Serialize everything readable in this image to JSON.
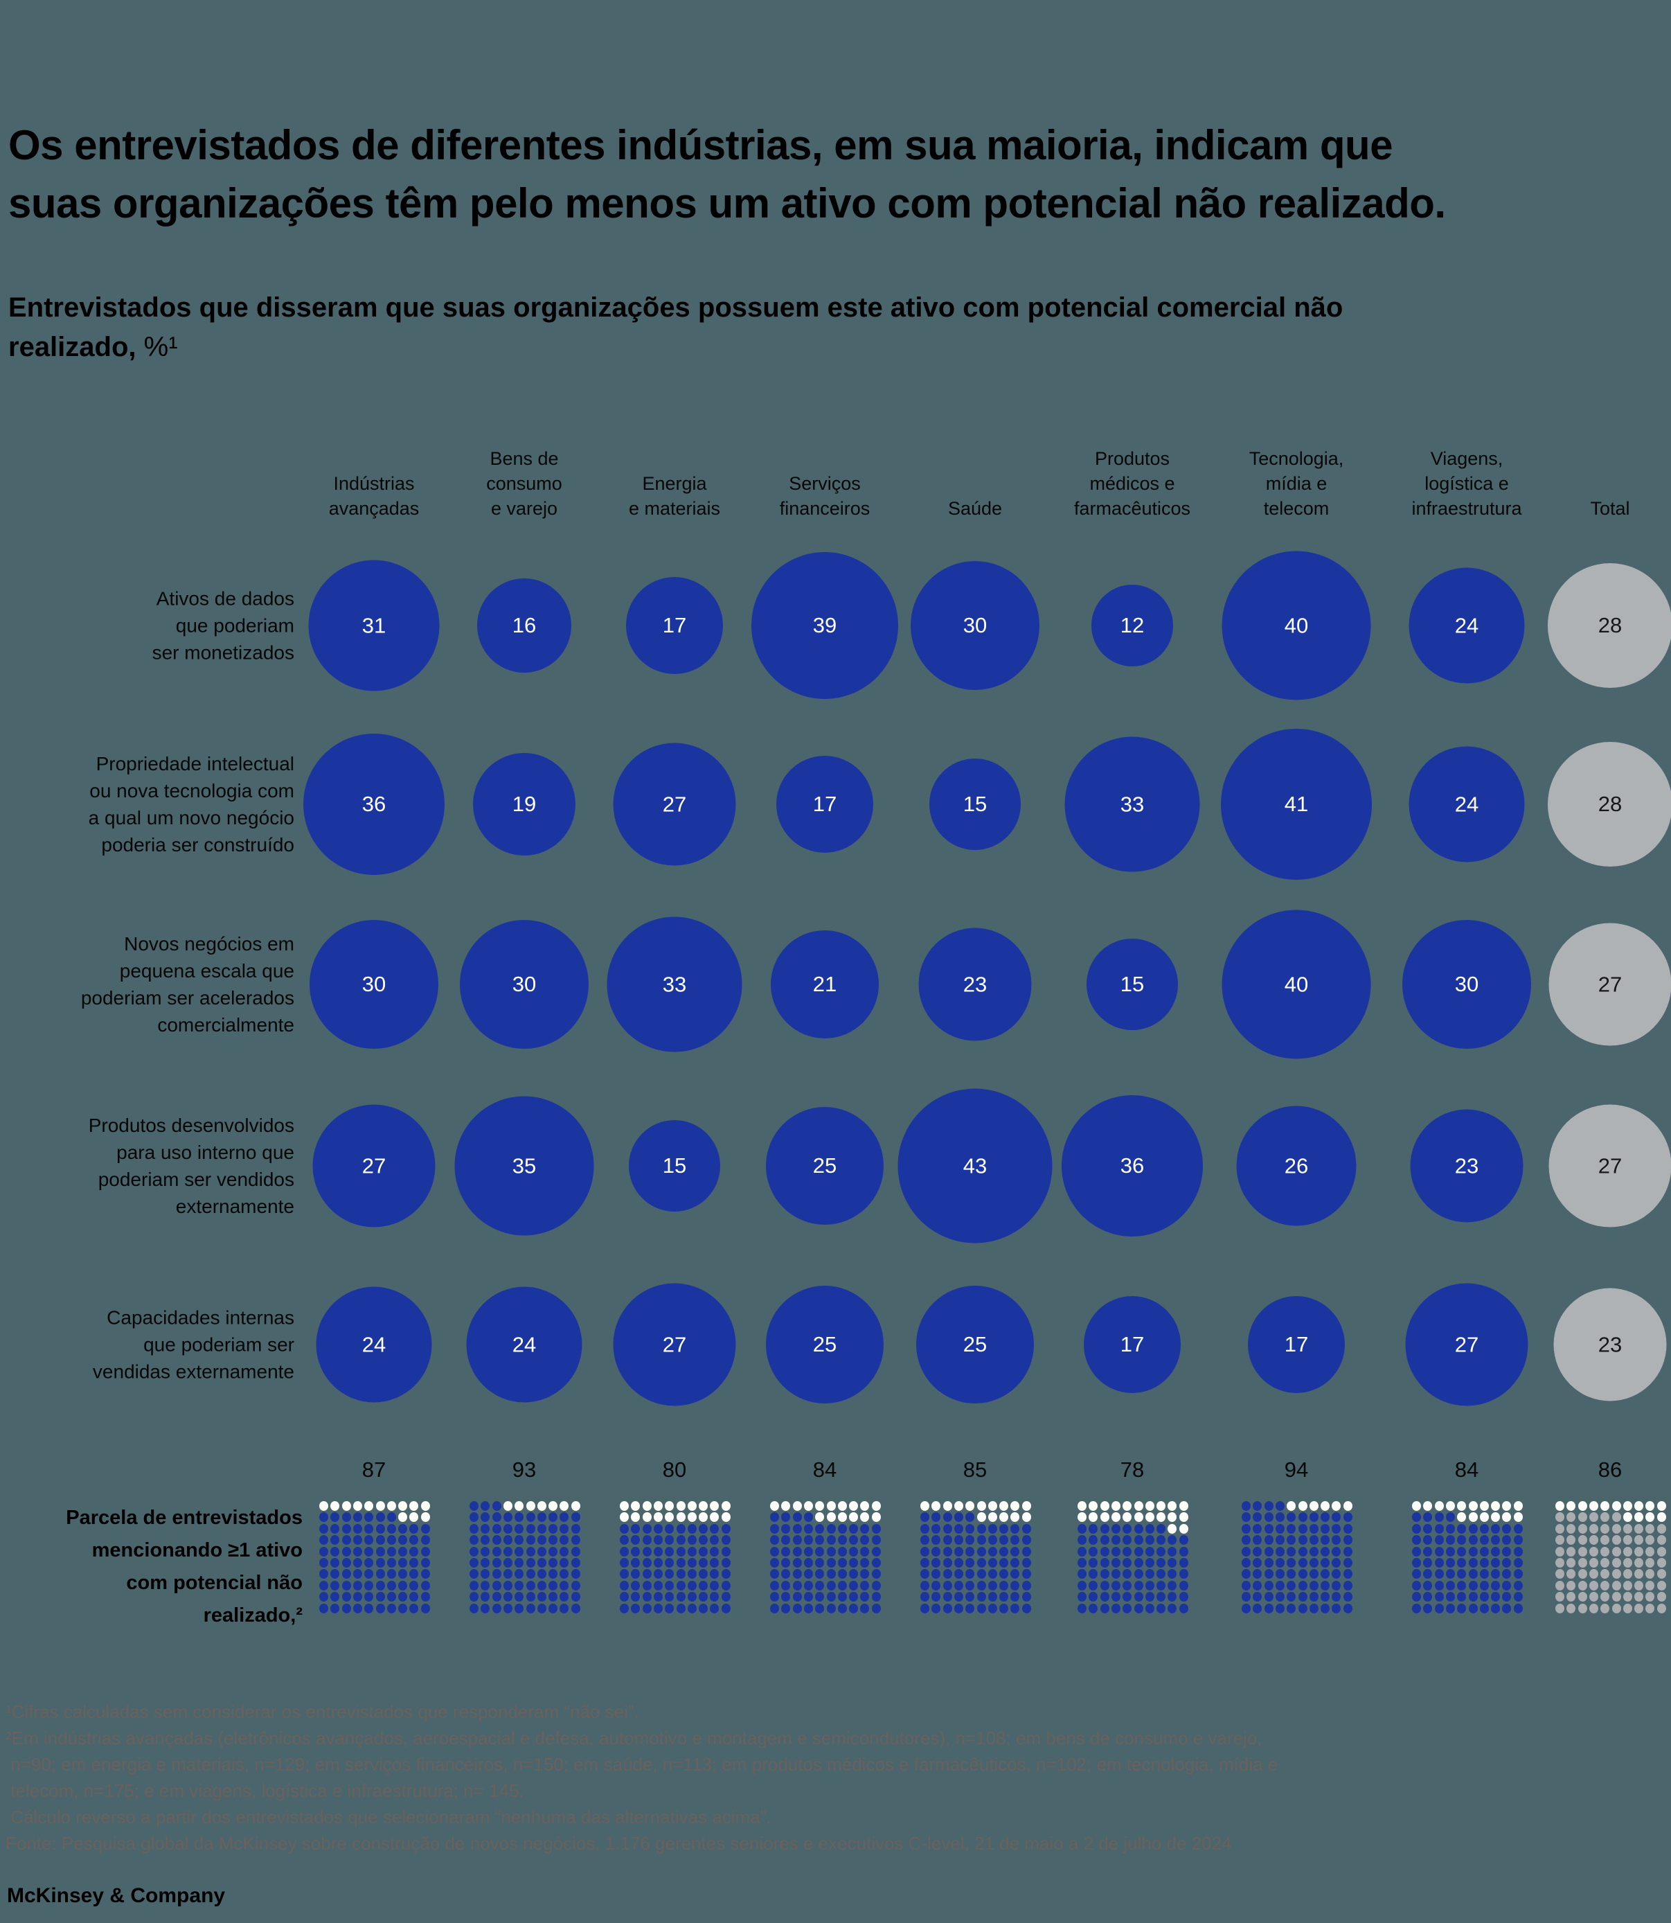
{
  "title": "Os entrevistados de diferentes indústrias, em sua maioria, indicam que\nsuas organizações têm pelo menos um ativo com potencial não realizado.",
  "subtitle": {
    "text": "Entrevistados que disseram que suas organizações possuem este ativo com potencial comercial não\nrealizado,",
    "unit": " %¹"
  },
  "chart_data": {
    "type": "bubble",
    "unit": "%",
    "value_encoding": "bubble area proportional to percentage; last column (Total) shown in gray",
    "columns": [
      "Indústrias avançadas",
      "Bens de consumo e varejo",
      "Energia e materiais",
      "Serviços financeiros",
      "Saúde",
      "Produtos médicos e farmacêuticos",
      "Tecnologia, mídia e telecom",
      "Viagens, logística e infraestrutura",
      "Total"
    ],
    "columns_display": [
      "Indústrias\navançadas",
      "Bens de\nconsumo\ne varejo",
      "Energia\ne materiais",
      "Serviços\nfinanceiros",
      "Saúde",
      "Produtos\nmédicos e\nfarmacêuticos",
      "Tecnologia,\nmídia e\ntelecom",
      "Viagens,\nlogística e\ninfraestrutura",
      "Total"
    ],
    "total_column_index": 8,
    "rows": [
      {
        "label": "Ativos de dados que poderiam ser monetizados",
        "label_display": "Ativos de dados\nque poderiam\nser monetizados",
        "values": [
          31,
          16,
          17,
          39,
          30,
          12,
          40,
          24,
          28
        ]
      },
      {
        "label": "Propriedade intelectual ou nova tecnologia com a qual um novo negócio poderia ser construído",
        "label_display": "Propriedade intelectual\nou nova tecnologia com\na qual um novo negócio\npoderia ser construído",
        "values": [
          36,
          19,
          27,
          17,
          15,
          33,
          41,
          24,
          28
        ]
      },
      {
        "label": "Novos negócios em pequena escala que poderiam ser acelerados comercialmente",
        "label_display": "Novos negócios em\npequena escala que\npoderiam ser acelerados\ncomercialmente",
        "values": [
          30,
          30,
          33,
          21,
          23,
          15,
          40,
          30,
          27
        ]
      },
      {
        "label": "Produtos desenvolvidos para uso interno que poderiam ser vendidos externamente",
        "label_display": "Produtos desenvolvidos\npara uso interno que\npoderiam ser vendidos\nexternamente",
        "values": [
          27,
          35,
          15,
          25,
          43,
          36,
          26,
          23,
          27
        ]
      },
      {
        "label": "Capacidades internas que poderiam ser vendidas externamente",
        "label_display": "Capacidades internas\nque poderiam ser\nvendidas externamente",
        "values": [
          24,
          24,
          27,
          25,
          25,
          17,
          17,
          27,
          23
        ]
      }
    ],
    "waffle_row": {
      "label": "Parcela de entrevistados mencionando ≥1 ativo com potencial não realizado,²",
      "label_display": "Parcela de entrevistados\nmencionando ≥1 ativo\ncom potencial não\nrealizado,²",
      "waffle_type": "10x10 dot grid, filled bottom-up left-to-right",
      "values": [
        87,
        93,
        80,
        84,
        85,
        78,
        94,
        84,
        86
      ]
    }
  },
  "colors": {
    "background": "#4b656c",
    "bubble_blue": "#1b35a0",
    "bubble_gray": "#aeb2b5",
    "bubble_text_on_blue": "#ffffff",
    "bubble_text_on_gray": "#17171a",
    "waffle_filled_blue": "#1b35a0",
    "waffle_filled_gray": "#a9adb0",
    "waffle_empty": "#fbfbf8",
    "footnote_text": "#6a615d",
    "text": "#000000"
  },
  "footnotes": [
    "¹Cifras calculadas sem considerar os entrevistados que responderam “não sei”.",
    "²Em indústrias avançadas (eletrônicos avançados, aeroespacial e defesa, automotivo e montagem e semicondutores), n=108; em bens de consumo e varejo,",
    " n=90; em energia e materiais, n=129; em serviços financeiros, n=150; em saúde, n=113; em produtos médicos e farmacêuticos, n=102; em tecnologia, mídia e",
    " telecom, n=175; e em viagens, logística e infraestrutura; n= 145.",
    " Cálculo reverso a partir dos entrevistados que selecionaram “nenhuma das alternativas acima”.",
    "Fonte: Pesquisa global da McKinsey sobre construção de novos negócios, 1.176 gerentes seniores e executivos C-level, 21 de maio a 2 de julho de 2024"
  ],
  "footer": "McKinsey & Company"
}
